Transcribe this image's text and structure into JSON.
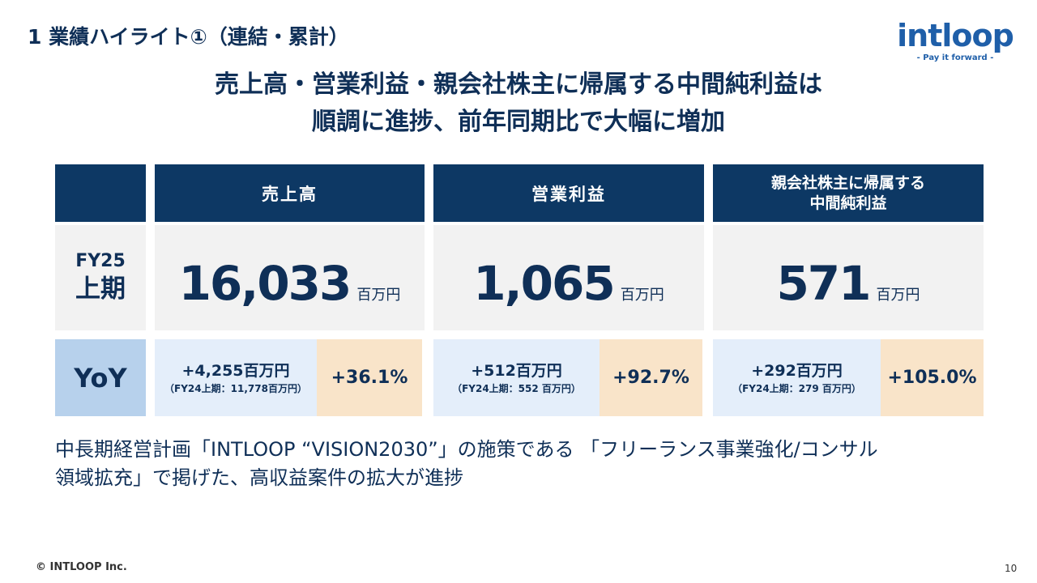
{
  "slide_title": "1  業績ハイライト①（連結・累計）",
  "logo": {
    "word": "intloop",
    "tagline": "- Pay it forward -"
  },
  "headline": {
    "line1": "売上高・営業利益・親会社株主に帰属する中間純利益は",
    "line2": "順調に進捗、前年同期比で大幅に増加"
  },
  "table": {
    "period_fy": "FY25",
    "period_half": "上期",
    "yoy_label": "YoY",
    "unit": "百万円",
    "columns": [
      {
        "header": "売上高",
        "value": "16,033",
        "diff": "+4,255百万円",
        "prev": "（FY24上期：11,778百万円）",
        "pct": "+36.1%"
      },
      {
        "header": "営業利益",
        "value": "1,065",
        "diff": "+512百万円",
        "prev": "（FY24上期：552 百万円）",
        "pct": "+92.7%"
      },
      {
        "header": "親会社株主に帰属する\n中間純利益",
        "value": "571",
        "diff": "+292百万円",
        "prev": "（FY24上期：279 百万円）",
        "pct": "+105.0%"
      }
    ]
  },
  "note": {
    "line1": "中長期経営計画「INTLOOP “VISION2030”」の施策である 「フリーランス事業強化/コンサル",
    "line2": "領域拡充」で掲げた、高収益案件の拡大が進捗"
  },
  "footer": {
    "copyright": "© INTLOOP  Inc.",
    "page": "10"
  },
  "colors": {
    "navy": "#0d3864",
    "text": "#0f2f57",
    "gray": "#f2f2f2",
    "light_blue": "#e4eefa",
    "yoy_blue": "#b7d1ec",
    "peach": "#f9e4c9",
    "logo_blue": "#1f5fa9"
  }
}
